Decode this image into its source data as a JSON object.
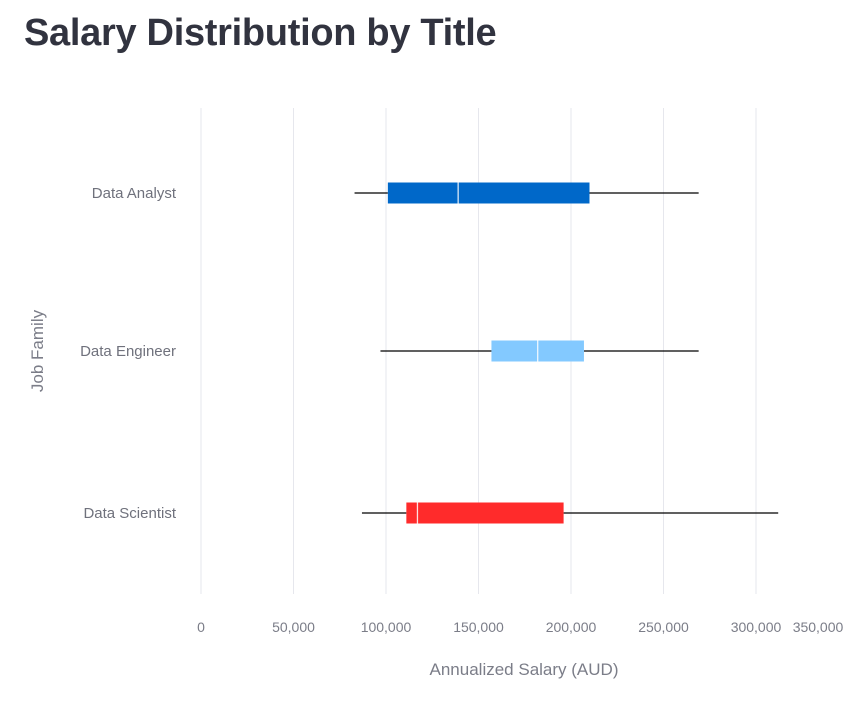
{
  "chart_data": {
    "type": "box",
    "orientation": "horizontal",
    "title": "Salary Distribution by Title",
    "xlabel": "Annualized Salary (AUD)",
    "ylabel": "Job Family",
    "xlim": [
      0,
      350000
    ],
    "x_ticks": [
      0,
      50000,
      100000,
      150000,
      200000,
      250000,
      300000,
      350000
    ],
    "x_tick_labels": [
      "0",
      "50,000",
      "100,000",
      "150,000",
      "200,000",
      "250,000",
      "300,000",
      "350,000"
    ],
    "grid": true,
    "categories": [
      "Data Analyst",
      "Data Engineer",
      "Data Scientist"
    ],
    "series": [
      {
        "name": "Data Analyst",
        "min": 83000,
        "q1": 101000,
        "median": 139000,
        "q3": 210000,
        "max": 269000,
        "color": "#0068c9"
      },
      {
        "name": "Data Engineer",
        "min": 97000,
        "q1": 157000,
        "median": 182000,
        "q3": 207000,
        "max": 269000,
        "color": "#83c9ff"
      },
      {
        "name": "Data Scientist",
        "min": 87000,
        "q1": 111000,
        "median": 117000,
        "q3": 196000,
        "max": 312000,
        "color": "#ff2b2b"
      }
    ]
  }
}
